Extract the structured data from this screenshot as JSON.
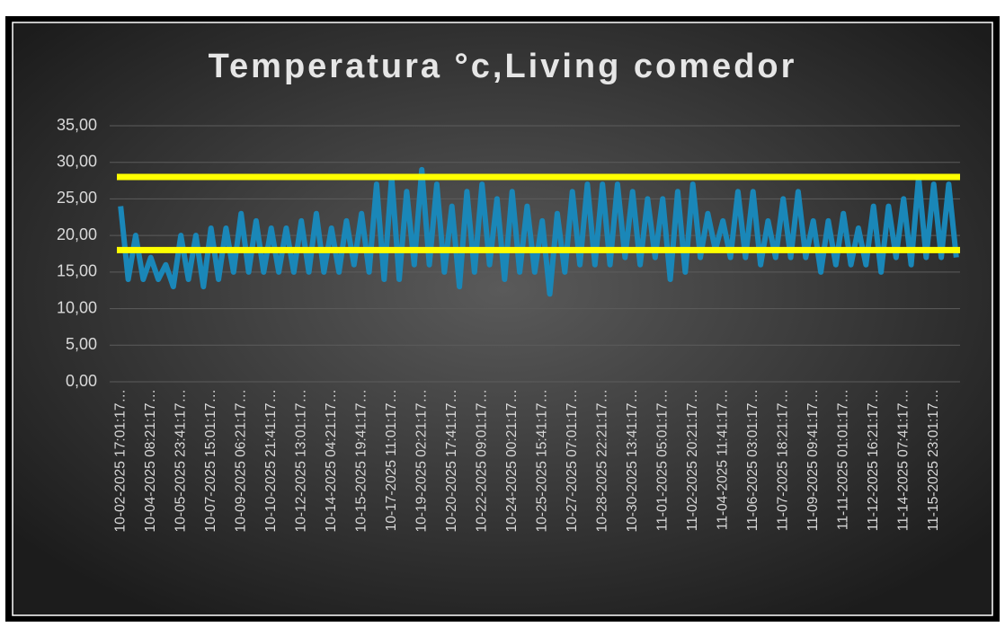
{
  "chart_data": {
    "type": "line",
    "title": "Temperatura °c,Living comedor",
    "categories": [
      "10-02-2025 17:01:17…",
      null,
      null,
      null,
      "10-04-2025 08:21:17…",
      null,
      null,
      null,
      "10-05-2025 23:41:17…",
      null,
      null,
      null,
      "10-07-2025 15:01:17…",
      null,
      null,
      null,
      "10-09-2025 06:21:17…",
      null,
      null,
      null,
      "10-10-2025 21:41:17…",
      null,
      null,
      null,
      "10-12-2025 13:01:17…",
      null,
      null,
      null,
      "10-14-2025 04:21:17…",
      null,
      null,
      null,
      "10-15-2025 19:41:17…",
      null,
      null,
      null,
      "10-17-2025 11:01:17…",
      null,
      null,
      null,
      "10-19-2025 02:21:17…",
      null,
      null,
      null,
      "10-20-2025 17:41:17…",
      null,
      null,
      null,
      "10-22-2025 09:01:17…",
      null,
      null,
      null,
      "10-24-2025 00:21:17…",
      null,
      null,
      null,
      "10-25-2025 15:41:17…",
      null,
      null,
      null,
      "10-27-2025 07:01:17…",
      null,
      null,
      null,
      "10-28-2025 22:21:17…",
      null,
      null,
      null,
      "10-30-2025 13:41:17…",
      null,
      null,
      null,
      "11-01-2025 05:01:17…",
      null,
      null,
      null,
      "11-02-2025 20:21:17…",
      null,
      null,
      null,
      "11-04-2025 11:41:17…",
      null,
      null,
      null,
      "11-06-2025 03:01:17…",
      null,
      null,
      null,
      "11-07-2025 18:21:17…",
      null,
      null,
      null,
      "11-09-2025 09:41:17…",
      null,
      null,
      null,
      "11-11-2025 01:01:17…",
      null,
      null,
      null,
      "11-12-2025 16:21:17…",
      null,
      null,
      null,
      "11-14-2025 07:41:17…",
      null,
      null,
      null,
      "11-15-2025 23:01:17…",
      null,
      null,
      null
    ],
    "values": [
      24,
      14,
      20,
      14,
      17,
      14,
      16,
      13,
      20,
      14,
      20,
      13,
      21,
      14,
      21,
      15,
      23,
      15,
      22,
      15,
      21,
      15,
      21,
      15,
      22,
      15,
      23,
      15,
      21,
      15,
      22,
      16,
      23,
      15,
      27,
      14,
      28,
      14,
      26,
      16,
      29,
      16,
      27,
      15,
      24,
      13,
      26,
      15,
      27,
      16,
      25,
      14,
      26,
      15,
      24,
      15,
      22,
      12,
      23,
      15,
      26,
      16,
      27,
      16,
      27,
      16,
      27,
      17,
      26,
      16,
      25,
      17,
      25,
      14,
      26,
      15,
      27,
      17,
      23,
      18,
      22,
      17,
      26,
      17,
      26,
      16,
      22,
      17,
      25,
      17,
      26,
      17,
      22,
      15,
      22,
      16,
      23,
      16,
      21,
      16,
      24,
      15,
      24,
      17,
      25,
      16,
      28,
      17,
      27,
      17,
      27,
      17
    ],
    "color": "#1a87b8",
    "reference_lines": [
      28,
      18
    ],
    "reference_color": "#ffff00",
    "ylim": [
      0,
      35
    ],
    "yticks": [
      {
        "value": 0,
        "label": "0,00"
      },
      {
        "value": 5,
        "label": "5,00"
      },
      {
        "value": 10,
        "label": "10,00"
      },
      {
        "value": 15,
        "label": "15,00"
      },
      {
        "value": 20,
        "label": "20,00"
      },
      {
        "value": 25,
        "label": "25,00"
      },
      {
        "value": 30,
        "label": "30,00"
      },
      {
        "value": 35,
        "label": "35,00"
      }
    ],
    "grid": true
  }
}
